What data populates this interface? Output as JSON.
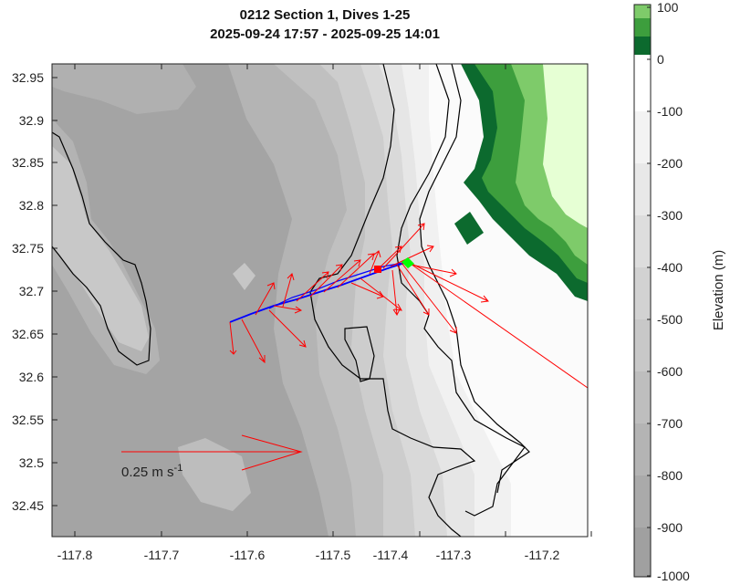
{
  "title_line1": "0212 Section 1, Dives 1-25",
  "title_line2": "2025-09-24 17:57 - 2025-09-25 14:01",
  "x_ticks": [
    "-117.8",
    "-117.7",
    "-117.6",
    "-117.5",
    "-117.4",
    "-117.3",
    "-117.2"
  ],
  "y_ticks": [
    "32.95",
    "32.9",
    "32.85",
    "32.8",
    "32.75",
    "32.7",
    "32.65",
    "32.6",
    "32.55",
    "32.5",
    "32.45"
  ],
  "colorbar": {
    "label": "Elevation (m)",
    "ticks": [
      "100",
      "0",
      "-100",
      "-200",
      "-300",
      "-400",
      "-500",
      "-600",
      "-700",
      "-800",
      "-900",
      "-1000"
    ],
    "land_colors": [
      "#e6ffd4",
      "#b3eb96",
      "#7ecb6a",
      "#3d9e3d",
      "#0c6a2e"
    ],
    "sea_colors": [
      "#ffffff",
      "#f2f2f2",
      "#e6e6e6",
      "#dadada",
      "#cfcfcf",
      "#c4c4c4",
      "#b9b9b9",
      "#afafaf",
      "#a6a6a6",
      "#9e9e9e"
    ]
  },
  "scale_label": "0.25 m s",
  "scale_label_sup": "-1",
  "legend_symbols": {
    "track_color": "#0000ff",
    "current_color": "#ff0000",
    "start_marker_color": "#ff0000",
    "end_marker_color": "#00ff00"
  }
}
